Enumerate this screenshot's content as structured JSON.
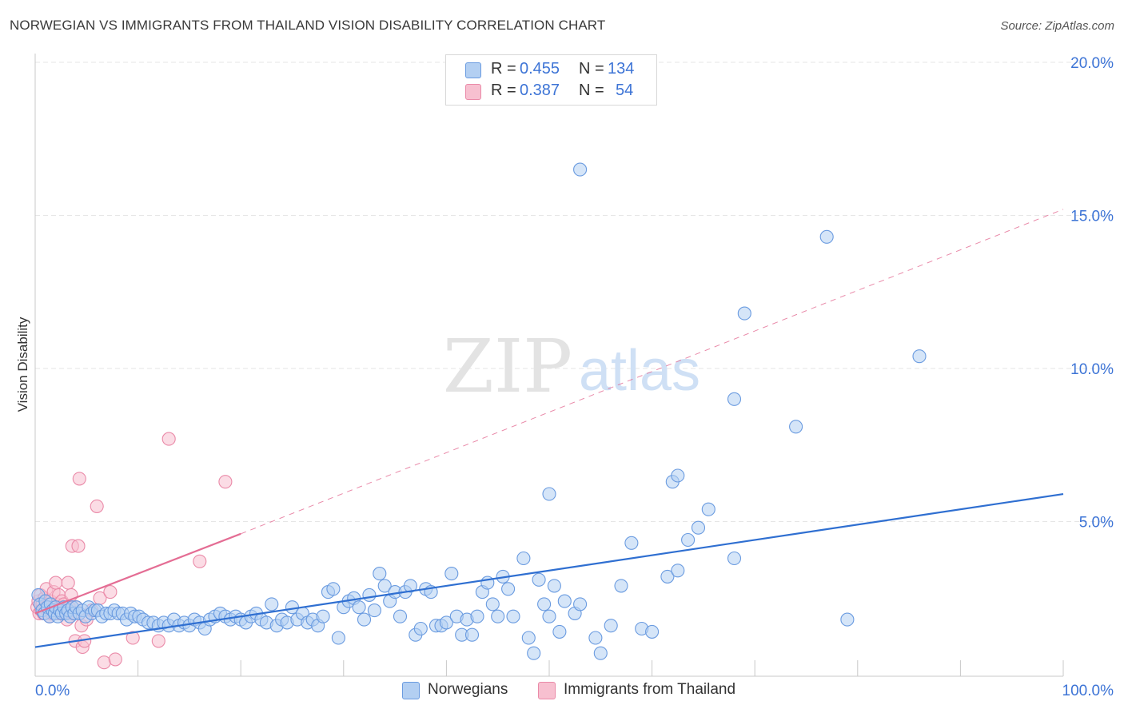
{
  "header": {
    "title": "NORWEGIAN VS IMMIGRANTS FROM THAILAND VISION DISABILITY CORRELATION CHART",
    "source": "Source: ZipAtlas.com"
  },
  "watermark": {
    "zip": "ZIP",
    "atlas": "atlas"
  },
  "colors": {
    "blue_fill": "#b3cff2",
    "blue_stroke": "#6a9be0",
    "blue_line": "#2f6fd1",
    "pink_fill": "#f7c0d0",
    "pink_stroke": "#ea8aa8",
    "pink_line": "#e46d94",
    "tick_label": "#3d74d6",
    "grid": "#e6e6e6"
  },
  "legend_top": [
    {
      "r_label": "R =",
      "r_value": "0.455",
      "n_label": "N =",
      "n_value": "134"
    },
    {
      "r_label": "R =",
      "r_value": "0.387",
      "n_label": "N =",
      "n_value": "54"
    }
  ],
  "legend_bottom": [
    {
      "label": "Norwegians"
    },
    {
      "label": "Immigrants from Thailand"
    }
  ],
  "chart_data": {
    "type": "scatter",
    "title": "NORWEGIAN VS IMMIGRANTS FROM THAILAND VISION DISABILITY CORRELATION CHART",
    "xlabel": "",
    "ylabel": "Vision Disability",
    "xlim": [
      0,
      100
    ],
    "ylim": [
      0,
      20.5
    ],
    "x_tick_labels": [
      {
        "value": 0,
        "label": "0.0%"
      },
      {
        "value": 100,
        "label": "100.0%"
      }
    ],
    "x_minor_ticks": [
      10,
      20,
      30,
      40,
      50,
      60,
      70,
      80,
      90,
      100
    ],
    "y_ticks": [
      {
        "value": 5,
        "label": "5.0%"
      },
      {
        "value": 10,
        "label": "10.0%"
      },
      {
        "value": 15,
        "label": "15.0%"
      },
      {
        "value": 20,
        "label": "20.0%"
      }
    ],
    "grid": true,
    "legend_position": "top-center",
    "series": [
      {
        "name": "Norwegians",
        "color": "#6a9be0",
        "trend": {
          "x0": 0,
          "y0": 0.9,
          "x1": 100,
          "y1": 5.9,
          "style": "solid"
        },
        "points": [
          [
            0.3,
            2.6
          ],
          [
            0.5,
            2.3
          ],
          [
            0.7,
            2.1
          ],
          [
            0.9,
            2.0
          ],
          [
            1.0,
            2.4
          ],
          [
            1.2,
            2.2
          ],
          [
            1.4,
            1.9
          ],
          [
            1.5,
            2.3
          ],
          [
            1.7,
            2.1
          ],
          [
            1.9,
            2.0
          ],
          [
            2.0,
            2.2
          ],
          [
            2.2,
            1.9
          ],
          [
            2.4,
            2.1
          ],
          [
            2.6,
            2.0
          ],
          [
            2.8,
            2.2
          ],
          [
            3.0,
            2.0
          ],
          [
            3.2,
            2.1
          ],
          [
            3.4,
            1.9
          ],
          [
            3.6,
            2.2
          ],
          [
            3.8,
            2.0
          ],
          [
            4.0,
            2.2
          ],
          [
            4.3,
            2.0
          ],
          [
            4.6,
            2.1
          ],
          [
            4.9,
            1.9
          ],
          [
            5.2,
            2.2
          ],
          [
            5.5,
            2.0
          ],
          [
            5.8,
            2.1
          ],
          [
            6.1,
            2.1
          ],
          [
            6.5,
            1.9
          ],
          [
            6.9,
            2.0
          ],
          [
            7.3,
            2.0
          ],
          [
            7.7,
            2.1
          ],
          [
            8.1,
            2.0
          ],
          [
            8.5,
            2.0
          ],
          [
            8.9,
            1.8
          ],
          [
            9.3,
            2.0
          ],
          [
            9.7,
            1.9
          ],
          [
            10.1,
            1.9
          ],
          [
            10.5,
            1.8
          ],
          [
            11.0,
            1.7
          ],
          [
            11.5,
            1.7
          ],
          [
            12.0,
            1.6
          ],
          [
            12.5,
            1.7
          ],
          [
            13.0,
            1.6
          ],
          [
            13.5,
            1.8
          ],
          [
            14.0,
            1.6
          ],
          [
            14.5,
            1.7
          ],
          [
            15.0,
            1.6
          ],
          [
            15.5,
            1.8
          ],
          [
            16.0,
            1.7
          ],
          [
            16.5,
            1.5
          ],
          [
            17.0,
            1.8
          ],
          [
            17.5,
            1.9
          ],
          [
            18.0,
            2.0
          ],
          [
            18.5,
            1.9
          ],
          [
            19.0,
            1.8
          ],
          [
            19.5,
            1.9
          ],
          [
            20.0,
            1.8
          ],
          [
            20.5,
            1.7
          ],
          [
            21.0,
            1.9
          ],
          [
            21.5,
            2.0
          ],
          [
            22.0,
            1.8
          ],
          [
            22.5,
            1.7
          ],
          [
            23.0,
            2.3
          ],
          [
            23.5,
            1.6
          ],
          [
            24.0,
            1.8
          ],
          [
            24.5,
            1.7
          ],
          [
            25.0,
            2.2
          ],
          [
            25.5,
            1.8
          ],
          [
            26.0,
            2.0
          ],
          [
            26.5,
            1.7
          ],
          [
            27.0,
            1.8
          ],
          [
            27.5,
            1.6
          ],
          [
            28.0,
            1.9
          ],
          [
            28.5,
            2.7
          ],
          [
            29.0,
            2.8
          ],
          [
            29.5,
            1.2
          ],
          [
            30.0,
            2.2
          ],
          [
            30.5,
            2.4
          ],
          [
            31.0,
            2.5
          ],
          [
            31.5,
            2.2
          ],
          [
            32.0,
            1.8
          ],
          [
            32.5,
            2.6
          ],
          [
            33.0,
            2.1
          ],
          [
            33.5,
            3.3
          ],
          [
            34.0,
            2.9
          ],
          [
            34.5,
            2.4
          ],
          [
            35.0,
            2.7
          ],
          [
            35.5,
            1.9
          ],
          [
            36.0,
            2.7
          ],
          [
            36.5,
            2.9
          ],
          [
            37.0,
            1.3
          ],
          [
            37.5,
            1.5
          ],
          [
            38.0,
            2.8
          ],
          [
            38.5,
            2.7
          ],
          [
            39.0,
            1.6
          ],
          [
            39.5,
            1.6
          ],
          [
            40.0,
            1.7
          ],
          [
            40.5,
            3.3
          ],
          [
            41.0,
            1.9
          ],
          [
            41.5,
            1.3
          ],
          [
            42.0,
            1.8
          ],
          [
            42.5,
            1.3
          ],
          [
            43.0,
            1.9
          ],
          [
            43.5,
            2.7
          ],
          [
            44.0,
            3.0
          ],
          [
            44.5,
            2.3
          ],
          [
            45.0,
            1.9
          ],
          [
            45.5,
            3.2
          ],
          [
            46.0,
            2.8
          ],
          [
            46.5,
            1.9
          ],
          [
            47.5,
            3.8
          ],
          [
            48.0,
            1.2
          ],
          [
            48.5,
            0.7
          ],
          [
            49.0,
            3.1
          ],
          [
            49.5,
            2.3
          ],
          [
            50.0,
            1.9
          ],
          [
            50.5,
            2.9
          ],
          [
            51.0,
            1.4
          ],
          [
            51.5,
            2.4
          ],
          [
            52.5,
            2.0
          ],
          [
            53.0,
            2.3
          ],
          [
            54.5,
            1.2
          ],
          [
            55.0,
            0.7
          ],
          [
            56.0,
            1.6
          ],
          [
            57.0,
            2.9
          ],
          [
            59.0,
            1.5
          ],
          [
            60.0,
            1.4
          ],
          [
            61.5,
            3.2
          ],
          [
            62.5,
            3.4
          ],
          [
            58.0,
            4.3
          ],
          [
            63.5,
            4.4
          ],
          [
            64.5,
            4.8
          ],
          [
            68.0,
            3.8
          ],
          [
            79.0,
            1.8
          ],
          [
            65.5,
            5.4
          ],
          [
            50.0,
            5.9
          ],
          [
            62.0,
            6.3
          ],
          [
            62.5,
            6.5
          ],
          [
            68.0,
            9.0
          ],
          [
            74.0,
            8.1
          ],
          [
            69.0,
            11.8
          ],
          [
            86.0,
            10.4
          ],
          [
            77.0,
            14.3
          ],
          [
            53.0,
            16.5
          ]
        ]
      },
      {
        "name": "Immigrants from Thailand",
        "color": "#ea8aa8",
        "trend": {
          "x0": 0,
          "y0": 2.0,
          "x1": 20,
          "y1": 4.6,
          "x_ext": 100,
          "y_ext": 15.2,
          "style": "solid-then-dashed"
        },
        "points": [
          [
            0.2,
            2.2
          ],
          [
            0.3,
            2.4
          ],
          [
            0.4,
            2.0
          ],
          [
            0.5,
            2.6
          ],
          [
            0.6,
            2.1
          ],
          [
            0.7,
            2.3
          ],
          [
            0.8,
            2.0
          ],
          [
            0.9,
            2.5
          ],
          [
            1.0,
            2.2
          ],
          [
            1.1,
            2.8
          ],
          [
            1.2,
            2.1
          ],
          [
            1.3,
            2.3
          ],
          [
            1.4,
            1.9
          ],
          [
            1.5,
            2.4
          ],
          [
            1.6,
            2.0
          ],
          [
            1.7,
            2.2
          ],
          [
            1.8,
            2.7
          ],
          [
            1.9,
            2.1
          ],
          [
            2.0,
            3.0
          ],
          [
            2.1,
            2.3
          ],
          [
            2.2,
            2.0
          ],
          [
            2.3,
            2.6
          ],
          [
            2.4,
            2.2
          ],
          [
            2.5,
            2.1
          ],
          [
            2.6,
            2.4
          ],
          [
            2.7,
            2.0
          ],
          [
            2.8,
            2.3
          ],
          [
            2.9,
            2.1
          ],
          [
            3.0,
            2.2
          ],
          [
            3.1,
            1.8
          ],
          [
            3.2,
            3.0
          ],
          [
            3.3,
            2.2
          ],
          [
            3.5,
            2.6
          ],
          [
            3.6,
            4.2
          ],
          [
            3.7,
            2.0
          ],
          [
            3.9,
            1.1
          ],
          [
            4.0,
            2.2
          ],
          [
            4.2,
            4.2
          ],
          [
            4.3,
            6.4
          ],
          [
            4.5,
            1.6
          ],
          [
            4.6,
            0.9
          ],
          [
            4.8,
            1.1
          ],
          [
            5.0,
            1.8
          ],
          [
            5.5,
            2.1
          ],
          [
            6.0,
            5.5
          ],
          [
            6.3,
            2.5
          ],
          [
            6.7,
            0.4
          ],
          [
            7.3,
            2.7
          ],
          [
            7.8,
            0.5
          ],
          [
            9.5,
            1.2
          ],
          [
            12.0,
            1.1
          ],
          [
            13.0,
            7.7
          ],
          [
            16.0,
            3.7
          ],
          [
            18.5,
            6.3
          ]
        ]
      }
    ]
  }
}
